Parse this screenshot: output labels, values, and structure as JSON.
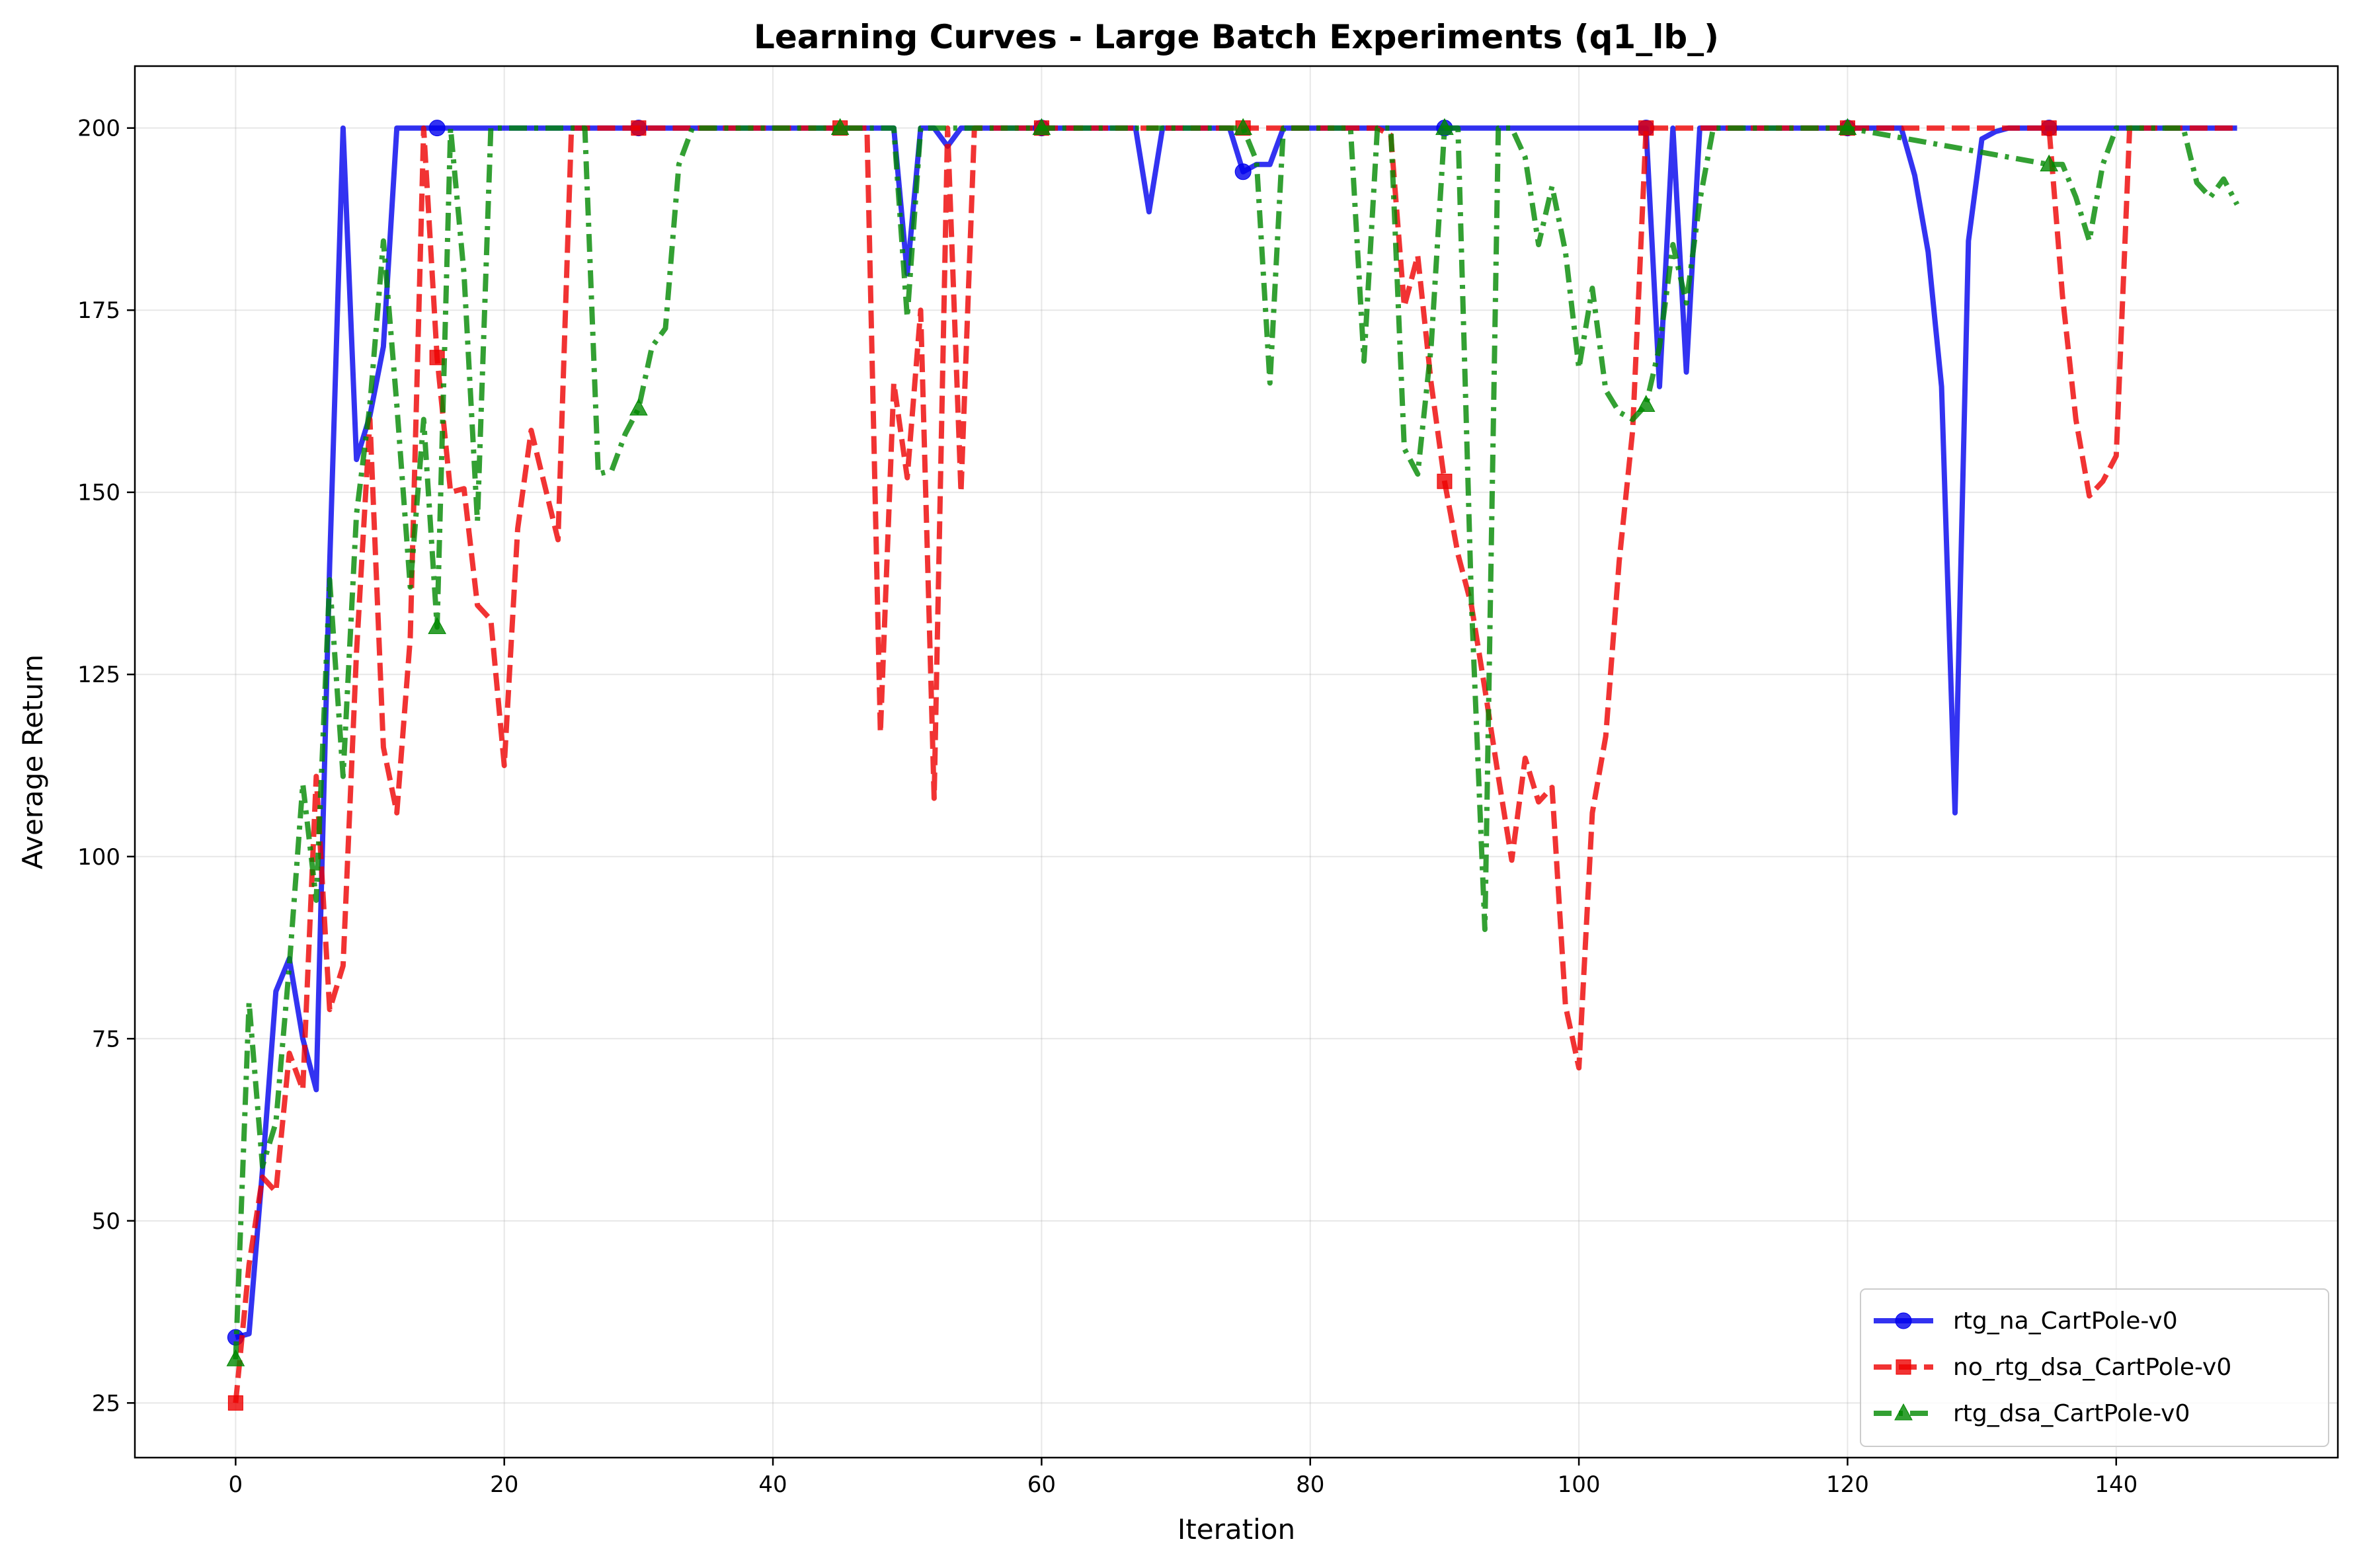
{
  "chart_data": {
    "type": "line",
    "title": "Learning Curves - Large Batch Experiments (q1_lb_)",
    "xlabel": "Iteration",
    "ylabel": "Average Return",
    "xlim": [
      -7.5,
      156.5
    ],
    "ylim": [
      17.5,
      208.5
    ],
    "xticks": [
      0,
      20,
      40,
      60,
      80,
      100,
      120,
      140
    ],
    "yticks": [
      25,
      50,
      75,
      100,
      125,
      150,
      175,
      200
    ],
    "grid": true,
    "legend_position": "lower-right",
    "series": [
      {
        "name": "rtg_na_CartPole-v0",
        "color": "#0000ee",
        "linestyle": "solid",
        "marker": "circle",
        "x": [
          0,
          1,
          2,
          3,
          4,
          5,
          6,
          7,
          8,
          9,
          10,
          11,
          12,
          13,
          14,
          15,
          16,
          20,
          30,
          40,
          49,
          50,
          51,
          52,
          53,
          54,
          55,
          60,
          65,
          67,
          68,
          69,
          70,
          74,
          75,
          76,
          77,
          78,
          79,
          80,
          85,
          90,
          100,
          105,
          106,
          107,
          108,
          109,
          110,
          120,
          124,
          125,
          126,
          127,
          128,
          129,
          130,
          131,
          132,
          135,
          140,
          145,
          149
        ],
        "y": [
          34,
          34.5,
          57,
          81.5,
          86,
          75,
          68,
          140,
          200,
          154.5,
          160.5,
          170,
          200,
          200,
          200,
          200,
          200,
          200,
          200,
          200,
          200,
          180,
          200,
          200,
          197.5,
          200,
          200,
          200,
          200,
          200,
          188.5,
          200,
          200,
          200,
          194,
          195,
          195,
          200,
          200,
          200,
          200,
          200,
          200,
          200,
          164.5,
          200,
          166.5,
          200,
          200,
          200,
          200,
          193.5,
          183,
          164.5,
          106,
          184.5,
          198.5,
          199.5,
          200,
          200,
          200,
          200,
          200
        ],
        "marker_x": [
          0,
          15,
          30,
          45,
          60,
          75,
          90,
          105,
          120,
          135
        ]
      },
      {
        "name": "no_rtg_dsa_CartPole-v0",
        "color": "#ee0000",
        "linestyle": "dashed",
        "marker": "square",
        "x": [
          0,
          1,
          2,
          3,
          4,
          5,
          6,
          7,
          8,
          9,
          10,
          11,
          12,
          13,
          14,
          15,
          16,
          17,
          18,
          19,
          20,
          21,
          22,
          23,
          24,
          25,
          30,
          40,
          45,
          47,
          48,
          49,
          50,
          51,
          52,
          53,
          54,
          55,
          60,
          75,
          85,
          86,
          87,
          88,
          89,
          90,
          91,
          92,
          93,
          94,
          95,
          96,
          97,
          98,
          99,
          100,
          101,
          102,
          103,
          104,
          105,
          110,
          120,
          135,
          136,
          137,
          138,
          139,
          140,
          141,
          142,
          143,
          149
        ],
        "y": [
          25,
          44,
          56,
          54,
          73,
          68,
          111,
          79,
          85,
          128,
          160,
          115,
          106,
          130,
          200,
          168.5,
          150,
          150.5,
          134.5,
          132.5,
          112.5,
          145,
          158.5,
          151,
          143.5,
          200,
          200,
          200,
          200,
          200,
          117,
          165,
          152,
          175,
          108,
          200,
          150,
          200,
          200,
          200,
          200,
          199,
          175.5,
          182.5,
          165,
          151.5,
          141.5,
          134.5,
          123,
          111,
          99.5,
          113.5,
          107.5,
          109.5,
          79.5,
          71,
          106,
          116.5,
          140.5,
          158.5,
          200,
          200,
          200,
          200,
          177,
          160,
          149.5,
          151.5,
          155,
          200,
          200,
          200,
          200
        ],
        "marker_x": [
          0,
          15,
          30,
          45,
          60,
          75,
          90,
          105,
          120,
          135
        ]
      },
      {
        "name": "rtg_dsa_CartPole-v0",
        "color": "#008800",
        "linestyle": "dashdot",
        "marker": "triangle",
        "x": [
          0,
          1,
          2,
          3,
          4,
          5,
          6,
          7,
          8,
          9,
          10,
          11,
          12,
          13,
          14,
          15,
          16,
          17,
          18,
          19,
          20,
          24,
          25,
          26,
          27,
          28,
          29,
          30,
          31,
          32,
          33,
          34,
          45,
          49,
          50,
          51,
          55,
          60,
          75,
          76,
          77,
          78,
          80,
          83,
          84,
          85,
          86,
          87,
          88,
          89,
          90,
          91,
          92,
          93,
          94,
          95,
          96,
          97,
          98,
          99,
          100,
          101,
          102,
          103,
          104,
          105,
          106,
          107,
          108,
          109,
          110,
          120,
          135,
          136,
          137,
          138,
          139,
          140,
          141,
          142,
          143,
          144,
          145,
          146,
          147,
          148,
          149
        ],
        "y": [
          31,
          80,
          57.5,
          63.5,
          85,
          110,
          94,
          138,
          111,
          147,
          162,
          184.5,
          162,
          137,
          160,
          131.5,
          200,
          180,
          146,
          200,
          200,
          200,
          200,
          200,
          152.5,
          153,
          158,
          161.5,
          170,
          172.5,
          195,
          200,
          200,
          200,
          174,
          200,
          200,
          200,
          200,
          195.5,
          165,
          200,
          200,
          200,
          168,
          200,
          200,
          156,
          152.5,
          170,
          200,
          200,
          135,
          90,
          200,
          200,
          196,
          184,
          192,
          183,
          167,
          178,
          164,
          161,
          160,
          162,
          170,
          184,
          176,
          190,
          200,
          200,
          195,
          195,
          190.5,
          184.5,
          195,
          200,
          200,
          200,
          200,
          200,
          200,
          192.5,
          190.5,
          193,
          189.5
        ],
        "marker_x": [
          0,
          15,
          30,
          45,
          60,
          75,
          90,
          105,
          120,
          135
        ]
      }
    ]
  }
}
